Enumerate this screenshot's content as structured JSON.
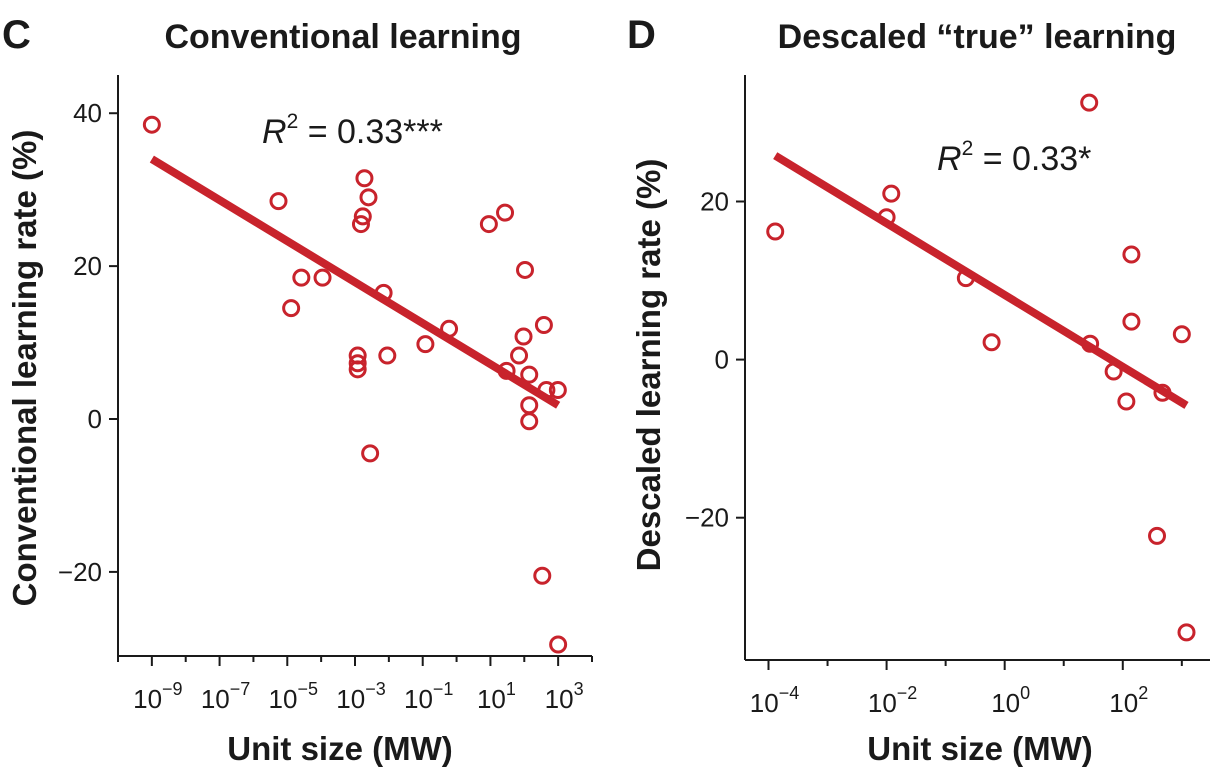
{
  "chart_data": [
    {
      "type": "scatter",
      "panel": "C",
      "title": "Conventional learning",
      "xlabel": "Unit size (MW)",
      "ylabel": "Conventional learning rate (%)",
      "xscale": "log",
      "xlim": [
        1e-10,
        10000.0
      ],
      "ylim": [
        -31,
        45
      ],
      "xticks": [
        {
          "value": 1e-09,
          "base": "10",
          "exp": "−9"
        },
        {
          "value": 1e-07,
          "base": "10",
          "exp": "−7"
        },
        {
          "value": 1e-05,
          "base": "10",
          "exp": "−5"
        },
        {
          "value": 0.001,
          "base": "10",
          "exp": "−3"
        },
        {
          "value": 0.1,
          "base": "10",
          "exp": "−1"
        },
        {
          "value": 10.0,
          "base": "10",
          "exp": "1"
        },
        {
          "value": 1000.0,
          "base": "10",
          "exp": "3"
        }
      ],
      "yticks": [
        {
          "value": 40,
          "label": "40"
        },
        {
          "value": 20,
          "label": "20"
        },
        {
          "value": 0,
          "label": "0"
        },
        {
          "value": -20,
          "label": "−20"
        }
      ],
      "annotation": {
        "r_label": "R",
        "r_sup": "2",
        "r_text": " = 0.33***"
      },
      "marker_color": "#c8232c",
      "line_color": "#c8232c",
      "points": [
        {
          "x": 1e-09,
          "y": 38.5
        },
        {
          "x": 5.5e-06,
          "y": 28.5
        },
        {
          "x": 1.3e-05,
          "y": 14.5
        },
        {
          "x": 2.6e-05,
          "y": 18.5
        },
        {
          "x": 0.00011,
          "y": 18.5
        },
        {
          "x": 0.0019,
          "y": 31.5
        },
        {
          "x": 0.0025,
          "y": 29
        },
        {
          "x": 0.0017,
          "y": 26.5
        },
        {
          "x": 0.0015,
          "y": 25.5
        },
        {
          "x": 0.0012,
          "y": 8.3
        },
        {
          "x": 0.0012,
          "y": 7.3
        },
        {
          "x": 0.0012,
          "y": 6.5
        },
        {
          "x": 0.0028,
          "y": -4.5
        },
        {
          "x": 0.007,
          "y": 16.5
        },
        {
          "x": 0.009,
          "y": 8.3
        },
        {
          "x": 0.12,
          "y": 9.8
        },
        {
          "x": 0.6,
          "y": 11.8
        },
        {
          "x": 9,
          "y": 25.5
        },
        {
          "x": 27,
          "y": 27
        },
        {
          "x": 30,
          "y": 6.3
        },
        {
          "x": 70,
          "y": 8.3
        },
        {
          "x": 95,
          "y": 10.8
        },
        {
          "x": 105,
          "y": 19.5
        },
        {
          "x": 140,
          "y": 5.8
        },
        {
          "x": 140,
          "y": 1.8
        },
        {
          "x": 140,
          "y": -0.3
        },
        {
          "x": 380,
          "y": 12.3
        },
        {
          "x": 450,
          "y": 3.8
        },
        {
          "x": 980,
          "y": 3.8
        },
        {
          "x": 340,
          "y": -20.5
        },
        {
          "x": 1000,
          "y": -29.5
        }
      ],
      "fit_line": {
        "x": [
          1e-09,
          1000
        ],
        "y": [
          34,
          1.8
        ]
      }
    },
    {
      "type": "scatter",
      "panel": "D",
      "title": "Descaled “true” learning",
      "xlabel": "Unit size (MW)",
      "ylabel": "Descaled learning rate (%)",
      "xscale": "log",
      "xlim": [
        4e-05,
        3000
      ],
      "ylim": [
        -38,
        36
      ],
      "xticks": [
        {
          "value": 0.0001,
          "base": "10",
          "exp": "−4"
        },
        {
          "value": 0.01,
          "base": "10",
          "exp": "−2"
        },
        {
          "value": 1,
          "base": "10",
          "exp": "0"
        },
        {
          "value": 100,
          "base": "10",
          "exp": "2"
        }
      ],
      "yticks": [
        {
          "value": 20,
          "label": "20"
        },
        {
          "value": 0,
          "label": "0"
        },
        {
          "value": -20,
          "label": "−20"
        }
      ],
      "annotation": {
        "r_label": "R",
        "r_sup": "2",
        "r_text": " = 0.33*"
      },
      "marker_color": "#c8232c",
      "line_color": "#c8232c",
      "points": [
        {
          "x": 0.00013,
          "y": 16.2
        },
        {
          "x": 0.01,
          "y": 18
        },
        {
          "x": 0.012,
          "y": 21
        },
        {
          "x": 0.22,
          "y": 10.3
        },
        {
          "x": 0.6,
          "y": 2.2
        },
        {
          "x": 27,
          "y": 32.5
        },
        {
          "x": 28,
          "y": 2
        },
        {
          "x": 70,
          "y": -1.5
        },
        {
          "x": 115,
          "y": -5.3
        },
        {
          "x": 140,
          "y": 13.3
        },
        {
          "x": 140,
          "y": 4.8
        },
        {
          "x": 380,
          "y": -22.3
        },
        {
          "x": 470,
          "y": -4.2
        },
        {
          "x": 1000,
          "y": 3.2
        },
        {
          "x": 1200,
          "y": -34.5
        }
      ],
      "fit_line": {
        "x": [
          0.00013,
          1200
        ],
        "y": [
          25.8,
          -5.8
        ]
      }
    }
  ]
}
